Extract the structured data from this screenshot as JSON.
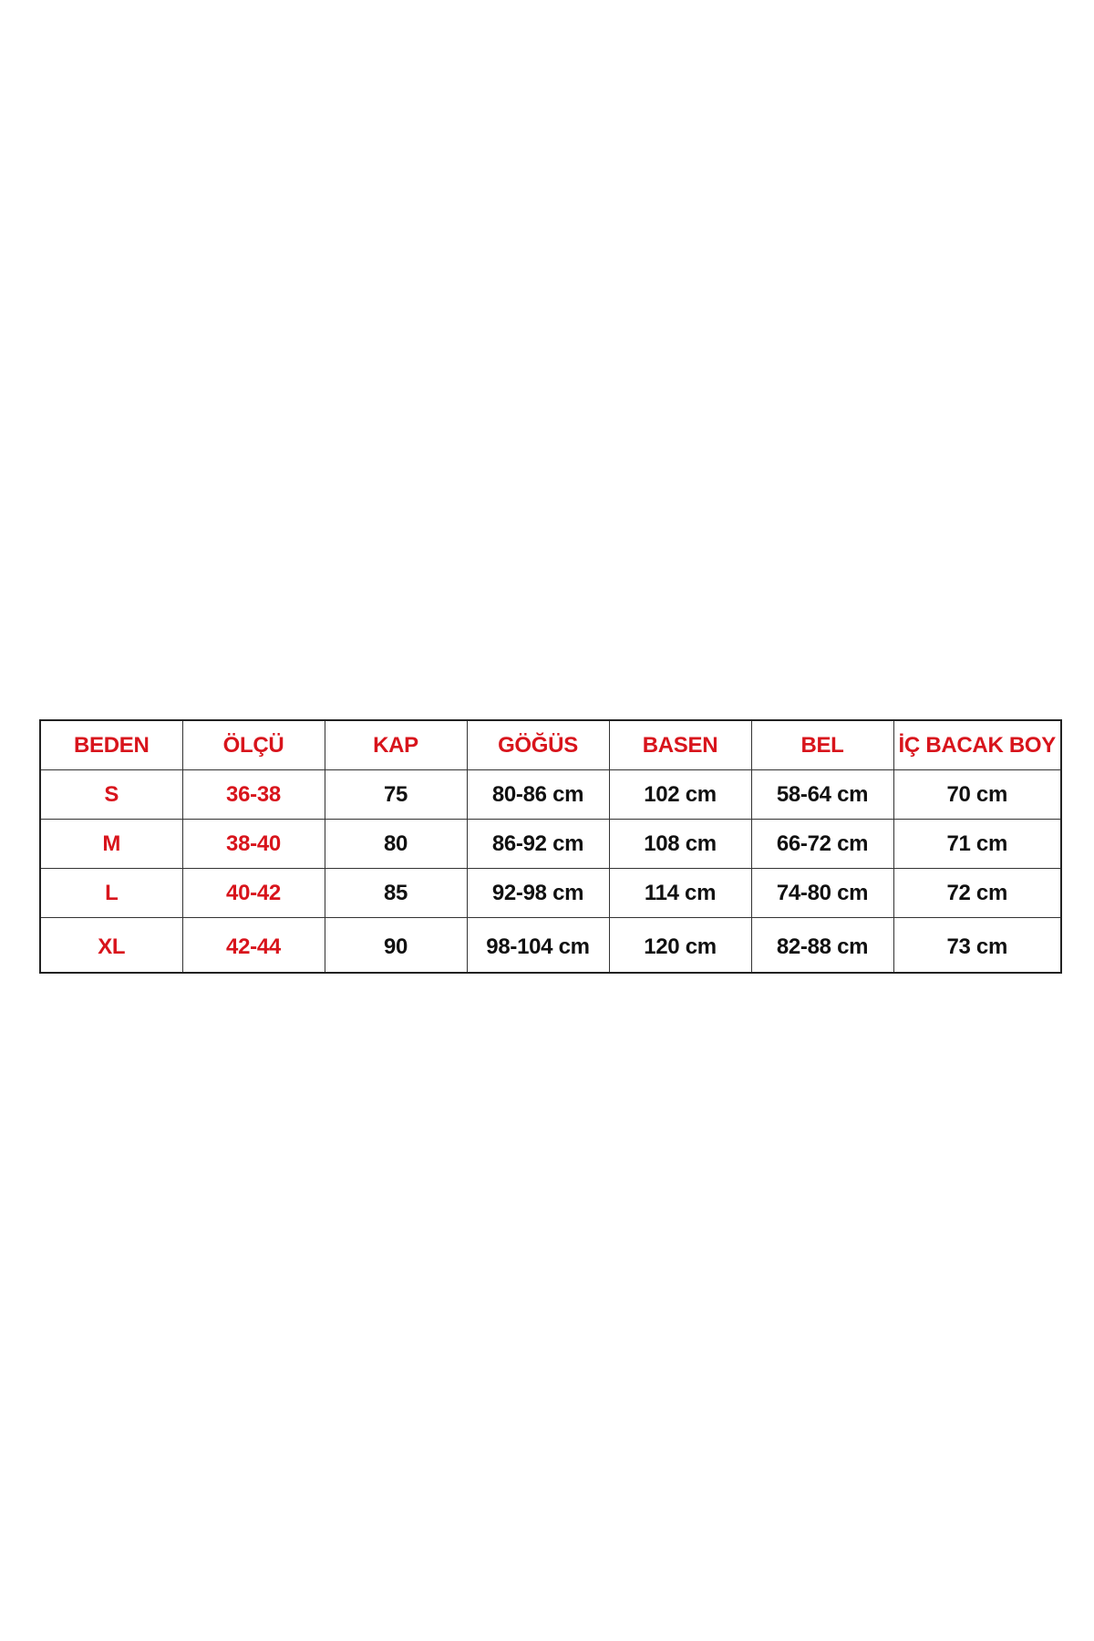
{
  "size_table": {
    "headers": [
      "BEDEN",
      "ÖLÇÜ",
      "KAP",
      "GÖĞÜS",
      "BASEN",
      "BEL",
      "İÇ BACAK BOY"
    ],
    "rows": [
      [
        "S",
        "36-38",
        "75",
        "80-86 cm",
        "102 cm",
        "58-64 cm",
        "70 cm"
      ],
      [
        "M",
        "38-40",
        "80",
        "86-92 cm",
        "108 cm",
        "66-72 cm",
        "71 cm"
      ],
      [
        "L",
        "40-42",
        "85",
        "92-98 cm",
        "114 cm",
        "74-80 cm",
        "72 cm"
      ],
      [
        "XL",
        "42-44",
        "90",
        "98-104 cm",
        "120 cm",
        "82-88 cm",
        "73 cm"
      ]
    ],
    "colors": {
      "header_text": "#d8141c",
      "size_text": "#d8141c",
      "value_text": "#111111",
      "border": "#222222"
    }
  }
}
